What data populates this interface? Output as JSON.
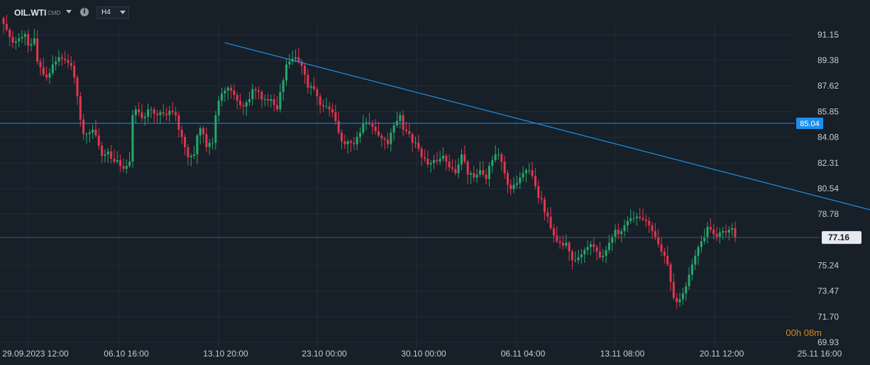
{
  "toolbar": {
    "symbol": "OIL.WTI",
    "instrument_kind": "CMD",
    "timeframe": "H4",
    "info_icon": "info-icon",
    "dropdown_icon": "chevron-down-icon"
  },
  "countdown": "00h 08m",
  "colors": {
    "background": "#171f28",
    "grid": "#232d37",
    "bull": "#26a96c",
    "bear": "#e0374f",
    "trendline": "#1e90e6",
    "hline": "#1e90e6",
    "price_line": "#4b5561"
  },
  "chart_data": {
    "type": "candlestick",
    "title": "",
    "ylim": [
      69.93,
      92.5
    ],
    "y_ticks": [
      "91.15",
      "89.38",
      "87.62",
      "85.85",
      "84.08",
      "82.31",
      "80.54",
      "78.78",
      "77.16",
      "75.24",
      "73.47",
      "71.70",
      "69.93"
    ],
    "x_ticks": [
      "29.09.2023  12:00",
      "06.10  16:00",
      "13.10  20:00",
      "23.10  00:00",
      "30.10  00:00",
      "06.11  04:00",
      "13.11  08:00",
      "20.11  12:00",
      "25.11  16:00"
    ],
    "horizontal_line": {
      "value": 85.04,
      "label": "85.04"
    },
    "last_price": {
      "value": 77.16,
      "label": "77.16"
    },
    "trendline": {
      "start": {
        "bar": 72,
        "value": 90.6
      },
      "end": {
        "bar": 346,
        "value": 75.55
      }
    },
    "closes": [
      91.9,
      91.5,
      91.0,
      90.6,
      90.7,
      90.9,
      91.0,
      91.2,
      90.4,
      90.5,
      90.9,
      89.3,
      88.9,
      88.4,
      88.2,
      88.5,
      89.1,
      89.3,
      89.6,
      89.5,
      89.4,
      89.2,
      89.0,
      88.2,
      86.9,
      85.3,
      84.3,
      84.3,
      84.4,
      84.6,
      84.2,
      83.5,
      82.8,
      82.9,
      83.1,
      82.6,
      82.4,
      82.5,
      82.1,
      81.9,
      82.1,
      82.4,
      85.6,
      86.0,
      85.8,
      85.4,
      85.5,
      86.0,
      86.0,
      85.7,
      85.6,
      85.8,
      85.7,
      85.6,
      85.9,
      85.8,
      85.6,
      84.6,
      84.1,
      83.4,
      82.7,
      82.8,
      82.9,
      84.2,
      84.7,
      84.3,
      83.4,
      83.7,
      83.7,
      85.6,
      86.6,
      87.1,
      87.3,
      87.5,
      87.3,
      87.0,
      86.6,
      86.3,
      86.2,
      86.5,
      86.7,
      87.4,
      87.3,
      87.2,
      86.7,
      86.7,
      86.6,
      86.7,
      86.3,
      86.0,
      87.2,
      88.0,
      89.1,
      89.3,
      89.5,
      89.6,
      89.3,
      89.0,
      88.4,
      87.5,
      87.6,
      87.4,
      86.9,
      86.3,
      86.2,
      86.2,
      86.0,
      85.8,
      85.2,
      84.4,
      83.8,
      83.6,
      83.8,
      83.7,
      83.6,
      84.1,
      84.4,
      85.0,
      85.1,
      85.0,
      84.8,
      84.5,
      84.2,
      84.0,
      83.9,
      83.6,
      84.4,
      84.9,
      85.2,
      85.6,
      84.6,
      84.5,
      84.3,
      83.7,
      83.7,
      83.3,
      82.7,
      82.6,
      82.2,
      82.3,
      82.5,
      82.4,
      82.6,
      82.8,
      82.4,
      82.0,
      81.9,
      81.6,
      82.2,
      82.9,
      82.4,
      81.5,
      81.6,
      81.3,
      81.5,
      81.8,
      81.5,
      81.2,
      82.1,
      82.5,
      82.9,
      82.9,
      82.4,
      81.6,
      80.8,
      80.5,
      80.8,
      80.9,
      81.3,
      81.6,
      81.8,
      81.8,
      81.4,
      80.7,
      79.9,
      79.8,
      78.9,
      78.6,
      77.8,
      77.3,
      76.9,
      76.8,
      76.6,
      76.8,
      76.2,
      75.6,
      75.6,
      75.8,
      76.0,
      76.3,
      76.5,
      76.7,
      76.5,
      76.2,
      75.8,
      75.9,
      76.3,
      76.8,
      77.2,
      77.7,
      77.4,
      77.6,
      78.0,
      78.3,
      78.5,
      78.5,
      78.6,
      78.5,
      78.4,
      78.3,
      78.0,
      77.6,
      77.2,
      76.7,
      76.2,
      75.9,
      75.3,
      74.1,
      73.0,
      72.7,
      72.9,
      73.3,
      73.8,
      74.6,
      75.3,
      75.9,
      76.5,
      76.9,
      77.2,
      77.9,
      77.7,
      77.4,
      77.2,
      77.5,
      77.6,
      77.5,
      77.7,
      77.8,
      77.16
    ]
  }
}
